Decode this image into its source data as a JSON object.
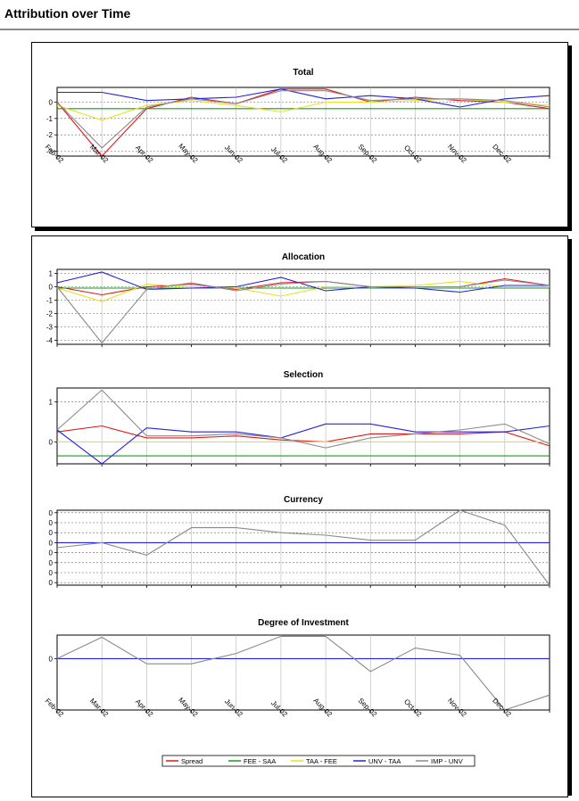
{
  "page": {
    "title": "Attribution over Time"
  },
  "x_labels": [
    "Feb-02",
    "Mar-02",
    "Apr-02",
    "May-02",
    "Jun-02",
    "Jul-02",
    "Aug-02",
    "Sep-02",
    "Oct-02",
    "Nov-02",
    "Dec-02"
  ],
  "series_styles": [
    {
      "name": "Spread",
      "color": "#e01818"
    },
    {
      "name": "FEE - SAA",
      "color": "#1a9a1a"
    },
    {
      "name": "TAA - FEE",
      "color": "#e8e020"
    },
    {
      "name": "UNV - TAA",
      "color": "#2222e0"
    },
    {
      "name": "IMP - UNV",
      "color": "#8a8a8a"
    }
  ],
  "legend": {
    "items": [
      "Spread",
      "FEE - SAA",
      "TAA - FEE",
      "UNV - TAA",
      "IMP - UNV"
    ]
  },
  "chart_data": [
    {
      "type": "line",
      "title": "Total",
      "ylim": [
        -3.3,
        0.9
      ],
      "yticks": [
        {
          "v": 0,
          "label": "0"
        },
        {
          "v": -1,
          "label": "-1"
        },
        {
          "v": -2,
          "label": "-2"
        },
        {
          "v": -3,
          "label": "-3"
        }
      ],
      "x": [
        "Feb-02",
        "Mar-02",
        "Apr-02",
        "May-02",
        "Jun-02",
        "Jul-02",
        "Aug-02",
        "Sep-02",
        "Oct-02",
        "Nov-02",
        "Dec-02",
        ""
      ],
      "series": [
        {
          "name": "Spread",
          "values": [
            0,
            -3.3,
            -0.4,
            0.3,
            -0.1,
            0.8,
            0.8,
            0.0,
            0.3,
            0.1,
            0.0,
            -0.4
          ]
        },
        {
          "name": "FEE - SAA",
          "values": [
            -0.4,
            -0.4,
            -0.4,
            -0.4,
            -0.4,
            -0.4,
            -0.4,
            -0.4,
            -0.4,
            -0.4,
            -0.4,
            -0.4
          ]
        },
        {
          "name": "TAA - FEE",
          "values": [
            -0.2,
            -1.1,
            -0.2,
            0.1,
            -0.2,
            -0.6,
            0.0,
            0.0,
            0.1,
            0.2,
            0.0,
            -0.2
          ]
        },
        {
          "name": "UNV - TAA",
          "values": [
            0.6,
            0.6,
            0.1,
            0.2,
            0.3,
            0.8,
            0.2,
            0.4,
            0.2,
            -0.3,
            0.2,
            0.4
          ]
        },
        {
          "name": "IMP - UNV",
          "values": [
            0,
            -2.8,
            -0.3,
            0.2,
            -0.1,
            0.7,
            0.7,
            0.1,
            0.2,
            0.2,
            0.1,
            -0.3
          ]
        }
      ]
    },
    {
      "type": "line",
      "title": "Allocation",
      "ylim": [
        -4.3,
        1.3
      ],
      "yticks": [
        {
          "v": 1,
          "label": "1"
        },
        {
          "v": 0,
          "label": "0"
        },
        {
          "v": -1,
          "label": "-1"
        },
        {
          "v": -2,
          "label": "-2"
        },
        {
          "v": -3,
          "label": "-3"
        },
        {
          "v": -4,
          "label": "-4"
        }
      ],
      "x": [
        "Feb-02",
        "Mar-02",
        "Apr-02",
        "May-02",
        "Jun-02",
        "Jul-02",
        "Aug-02",
        "Sep-02",
        "Oct-02",
        "Nov-02",
        "Dec-02",
        ""
      ],
      "series": [
        {
          "name": "Spread",
          "values": [
            0,
            -0.6,
            0.0,
            0.2,
            -0.2,
            0.3,
            0.4,
            0.0,
            0.0,
            0.0,
            0.6,
            0.1
          ]
        },
        {
          "name": "FEE - SAA",
          "values": [
            -0.1,
            -0.1,
            -0.1,
            -0.1,
            -0.1,
            -0.1,
            -0.1,
            -0.1,
            -0.1,
            -0.1,
            -0.1,
            -0.1
          ]
        },
        {
          "name": "TAA - FEE",
          "values": [
            -0.1,
            -1.1,
            0.2,
            0.0,
            -0.1,
            -0.7,
            0.0,
            0.0,
            0.1,
            0.4,
            0.0,
            0.0
          ]
        },
        {
          "name": "UNV - TAA",
          "values": [
            0.3,
            1.1,
            -0.2,
            -0.1,
            0.0,
            0.7,
            -0.3,
            0.0,
            -0.1,
            -0.4,
            0.1,
            0.1
          ]
        },
        {
          "name": "IMP - UNV",
          "values": [
            0,
            -4.2,
            -0.2,
            0.3,
            -0.3,
            0.2,
            0.4,
            0.0,
            0.0,
            0.0,
            0.5,
            0.1
          ]
        }
      ]
    },
    {
      "type": "line",
      "title": "Selection",
      "ylim": [
        -0.55,
        1.35
      ],
      "yticks": [
        {
          "v": 1,
          "label": "1"
        },
        {
          "v": 0,
          "label": "0"
        }
      ],
      "x": [
        "Feb-02",
        "Mar-02",
        "Apr-02",
        "May-02",
        "Jun-02",
        "Jul-02",
        "Aug-02",
        "Sep-02",
        "Oct-02",
        "Nov-02",
        "Dec-02",
        ""
      ],
      "series": [
        {
          "name": "Spread",
          "values": [
            0.25,
            0.4,
            0.1,
            0.1,
            0.15,
            0.05,
            0.0,
            0.2,
            0.2,
            0.2,
            0.25,
            -0.1
          ]
        },
        {
          "name": "FEE - SAA",
          "values": [
            -0.35,
            -0.35,
            -0.35,
            -0.35,
            -0.35,
            -0.35,
            -0.35,
            -0.35,
            -0.35,
            -0.35,
            -0.35,
            -0.35
          ]
        },
        {
          "name": "TAA - FEE",
          "values": [
            0.0,
            0.0,
            0.0,
            0.0,
            0.0,
            0.0,
            0.0,
            0.0,
            0.0,
            0.0,
            0.0,
            0.0
          ]
        },
        {
          "name": "UNV - TAA",
          "values": [
            0.3,
            -0.55,
            0.35,
            0.25,
            0.25,
            0.1,
            0.45,
            0.45,
            0.25,
            0.25,
            0.25,
            0.4
          ]
        },
        {
          "name": "IMP - UNV",
          "values": [
            0.3,
            1.3,
            0.15,
            0.15,
            0.2,
            0.1,
            -0.15,
            0.1,
            0.2,
            0.3,
            0.45,
            -0.05
          ]
        }
      ]
    },
    {
      "type": "line",
      "title": "Currency",
      "ylim": [
        -0.0085,
        0.0065
      ],
      "yticks": [
        {
          "v": 0.006,
          "label": "0"
        },
        {
          "v": 0.004,
          "label": "0"
        },
        {
          "v": 0.002,
          "label": "0"
        },
        {
          "v": 0,
          "label": "0"
        },
        {
          "v": -0.002,
          "label": "0"
        },
        {
          "v": -0.004,
          "label": "0"
        },
        {
          "v": -0.006,
          "label": "0"
        },
        {
          "v": -0.008,
          "label": "0"
        }
      ],
      "x": [
        "Feb-02",
        "Mar-02",
        "Apr-02",
        "May-02",
        "Jun-02",
        "Jul-02",
        "Aug-02",
        "Sep-02",
        "Oct-02",
        "Nov-02",
        "Dec-02",
        ""
      ],
      "series": [
        {
          "name": "UNV - TAA",
          "values": [
            0,
            0,
            0,
            0,
            0,
            0,
            0,
            0,
            0,
            0,
            0,
            0
          ]
        },
        {
          "name": "IMP - UNV",
          "values": [
            -0.001,
            0.0,
            -0.0025,
            0.003,
            0.003,
            0.002,
            0.0015,
            0.0005,
            0.0005,
            0.0065,
            0.0035,
            -0.0085
          ]
        }
      ]
    },
    {
      "type": "line",
      "title": "Degree of Investment",
      "ylim": [
        -0.012,
        0.0055
      ],
      "yticks": [
        {
          "v": 0,
          "label": "0"
        }
      ],
      "x": [
        "Feb-02",
        "Mar-02",
        "Apr-02",
        "May-02",
        "Jun-02",
        "Jul-02",
        "Aug-02",
        "Sep-02",
        "Oct-02",
        "Nov-02",
        "Dec-02",
        ""
      ],
      "series": [
        {
          "name": "UNV - TAA",
          "values": [
            0,
            0,
            0,
            0,
            0,
            0,
            0,
            0,
            0,
            0,
            0,
            0
          ]
        },
        {
          "name": "IMP - UNV",
          "values": [
            0.0,
            0.005,
            -0.0012,
            -0.0012,
            0.0012,
            0.0052,
            0.0052,
            -0.003,
            0.0025,
            0.0008,
            -0.012,
            -0.0085
          ]
        }
      ]
    }
  ]
}
